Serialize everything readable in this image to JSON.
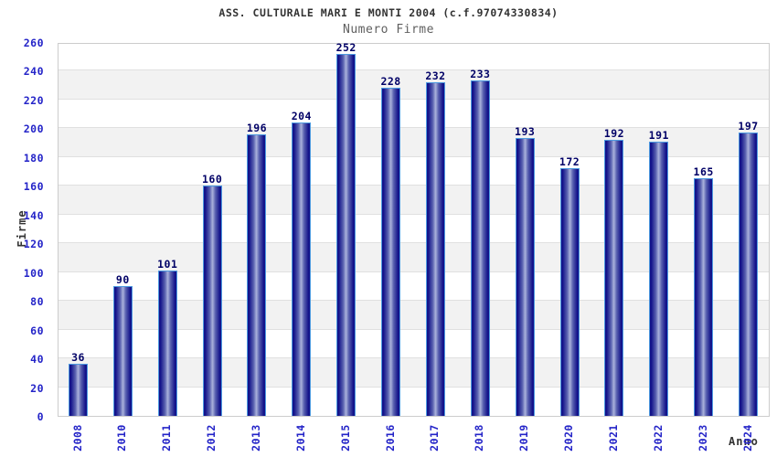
{
  "chart_data": {
    "type": "bar",
    "title": "ASS. CULTURALE MARI E MONTI 2004 (c.f.97074330834)",
    "subtitle": "Numero Firme",
    "xlabel": "Anno",
    "ylabel": "Firme",
    "categories": [
      "2008",
      "2010",
      "2011",
      "2012",
      "2013",
      "2014",
      "2015",
      "2016",
      "2017",
      "2018",
      "2019",
      "2020",
      "2021",
      "2022",
      "2023",
      "2024"
    ],
    "values": [
      36,
      90,
      101,
      160,
      196,
      204,
      252,
      228,
      232,
      233,
      193,
      172,
      192,
      191,
      165,
      197
    ],
    "ylim": [
      0,
      260
    ],
    "ytick_step": 20,
    "legend": "none",
    "grid": "horizontal-bands",
    "colors": {
      "bar_dark": "#13138a",
      "bar_mid": "#5a62b0",
      "bar_light": "#aab2dc",
      "bar_border": "#4d9ae0",
      "value_label": "#000066",
      "tick_label": "#2424c8",
      "title": "#333333",
      "subtitle": "#5f5f5f",
      "axis_title": "#333333",
      "band": "#f2f2f2",
      "gridline": "#e0e0e0",
      "plot_border": "#cccccc"
    }
  }
}
